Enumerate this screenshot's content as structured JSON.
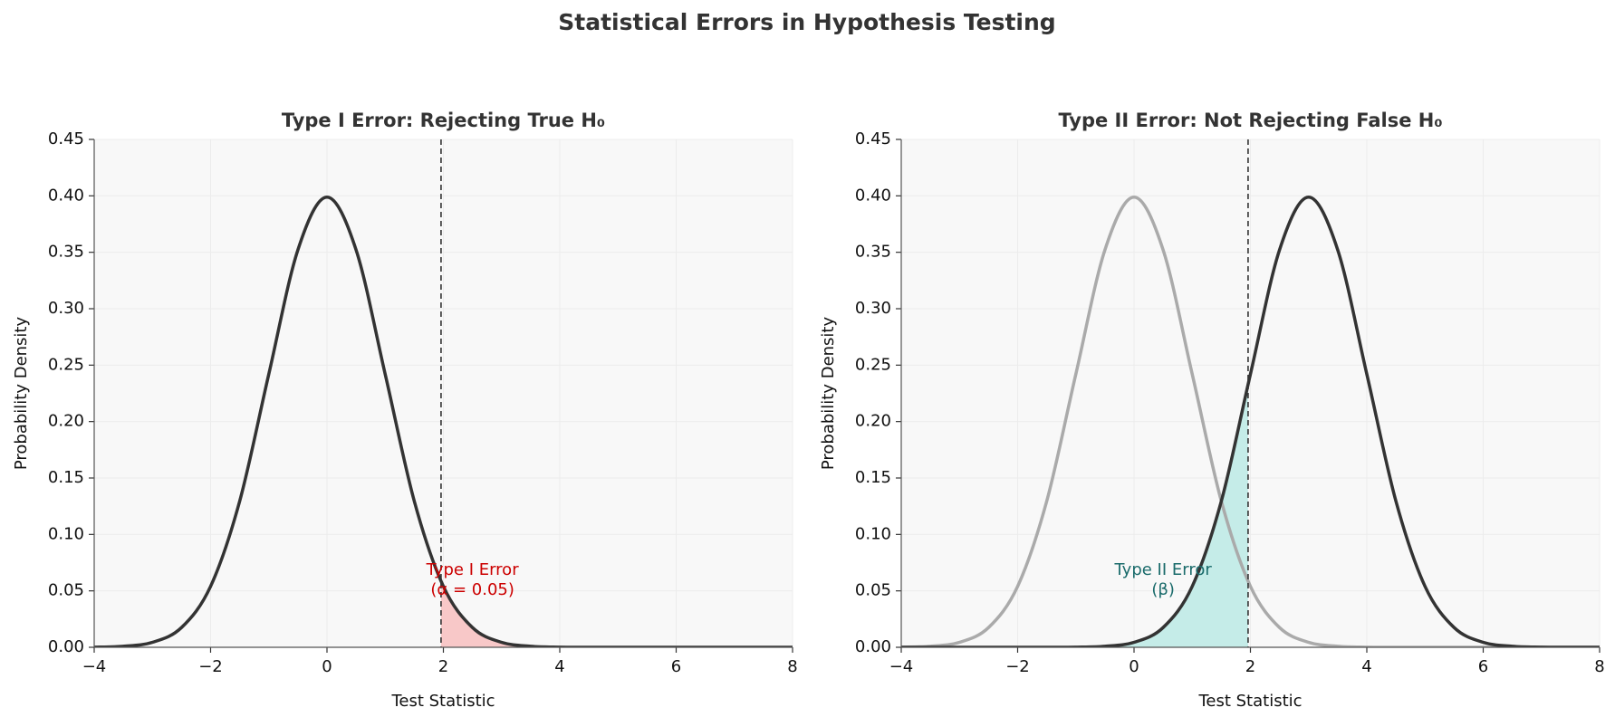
{
  "title": "Statistical Errors in Hypothesis Testing",
  "chart_data": [
    {
      "type": "line",
      "title": "Type I Error: Rejecting True H₀",
      "xlabel": "Test Statistic",
      "ylabel": "Probability Density",
      "x": [
        -4,
        -3.5,
        -3,
        -2.5,
        -2,
        -1.5,
        -1,
        -0.5,
        0,
        0.5,
        1,
        1.5,
        2,
        2.5,
        3,
        3.5,
        4,
        4.5,
        5,
        5.5,
        6,
        6.5,
        7,
        7.5,
        8
      ],
      "series": [
        {
          "color": "#333333",
          "values": [
            0.0001,
            0.0009,
            0.0044,
            0.0175,
            0.054,
            0.1295,
            0.242,
            0.3521,
            0.3989,
            0.3521,
            0.242,
            0.1295,
            0.054,
            0.0175,
            0.0044,
            0.0009,
            0.0001,
            0,
            0,
            0,
            0,
            0,
            0,
            0,
            0
          ],
          "shade": "right",
          "shade_color": "#f8c8c8"
        }
      ],
      "critical_value": 1.96,
      "annotation": {
        "lines": [
          "Type I Error",
          "(α = 0.05)"
        ],
        "color": "#cc0000"
      },
      "xlim": [
        -4,
        8
      ],
      "ylim": [
        0,
        0.45
      ],
      "xticks": [
        {
          "value": -4,
          "label": "−4"
        },
        {
          "value": -2,
          "label": "−2"
        },
        0,
        2,
        4,
        6,
        8
      ],
      "yticks": [
        {
          "value": 0,
          "label": "0.00"
        },
        {
          "value": 0.05,
          "label": "0.05"
        },
        {
          "value": 0.1,
          "label": "0.10"
        },
        {
          "value": 0.15,
          "label": "0.15"
        },
        {
          "value": 0.2,
          "label": "0.20"
        },
        {
          "value": 0.25,
          "label": "0.25"
        },
        {
          "value": 0.3,
          "label": "0.30"
        },
        {
          "value": 0.35,
          "label": "0.35"
        },
        {
          "value": 0.4,
          "label": "0.40"
        },
        {
          "value": 0.45,
          "label": "0.45"
        }
      ],
      "grid": true
    },
    {
      "type": "line",
      "title": "Type II Error: Not Rejecting False H₀",
      "xlabel": "Test Statistic",
      "ylabel": "Probability Density",
      "x": [
        -4,
        -3.5,
        -3,
        -2.5,
        -2,
        -1.5,
        -1,
        -0.5,
        0,
        0.5,
        1,
        1.5,
        2,
        2.5,
        3,
        3.5,
        4,
        4.5,
        5,
        5.5,
        6,
        6.5,
        7,
        7.5,
        8
      ],
      "series": [
        {
          "color": "#aaaaaa",
          "values": [
            0.0001,
            0.0009,
            0.0044,
            0.0175,
            0.054,
            0.1295,
            0.242,
            0.3521,
            0.3989,
            0.3521,
            0.242,
            0.1295,
            0.054,
            0.0175,
            0.0044,
            0.0009,
            0.0001,
            0,
            0,
            0,
            0,
            0,
            0,
            0,
            0
          ]
        },
        {
          "color": "#333333",
          "values": [
            0,
            0,
            0,
            0,
            0,
            0,
            0.0001,
            0.0009,
            0.0044,
            0.0175,
            0.054,
            0.1295,
            0.242,
            0.3521,
            0.3989,
            0.3521,
            0.242,
            0.1295,
            0.054,
            0.0175,
            0.0044,
            0.0009,
            0.0001,
            0,
            0
          ],
          "shade": "left",
          "shade_color": "#c5ece8"
        }
      ],
      "critical_value": 1.96,
      "annotation": {
        "lines": [
          "Type II Error",
          "(β)"
        ],
        "color": "#1a6b6b"
      },
      "xlim": [
        -4,
        8
      ],
      "ylim": [
        0,
        0.45
      ],
      "xticks": [
        {
          "value": -4,
          "label": "−4"
        },
        {
          "value": -2,
          "label": "−2"
        },
        0,
        2,
        4,
        6,
        8
      ],
      "yticks": [
        {
          "value": 0,
          "label": "0.00"
        },
        {
          "value": 0.05,
          "label": "0.05"
        },
        {
          "value": 0.1,
          "label": "0.10"
        },
        {
          "value": 0.15,
          "label": "0.15"
        },
        {
          "value": 0.2,
          "label": "0.20"
        },
        {
          "value": 0.25,
          "label": "0.25"
        },
        {
          "value": 0.3,
          "label": "0.30"
        },
        {
          "value": 0.35,
          "label": "0.35"
        },
        {
          "value": 0.4,
          "label": "0.40"
        },
        {
          "value": 0.45,
          "label": "0.45"
        }
      ],
      "grid": true
    }
  ]
}
